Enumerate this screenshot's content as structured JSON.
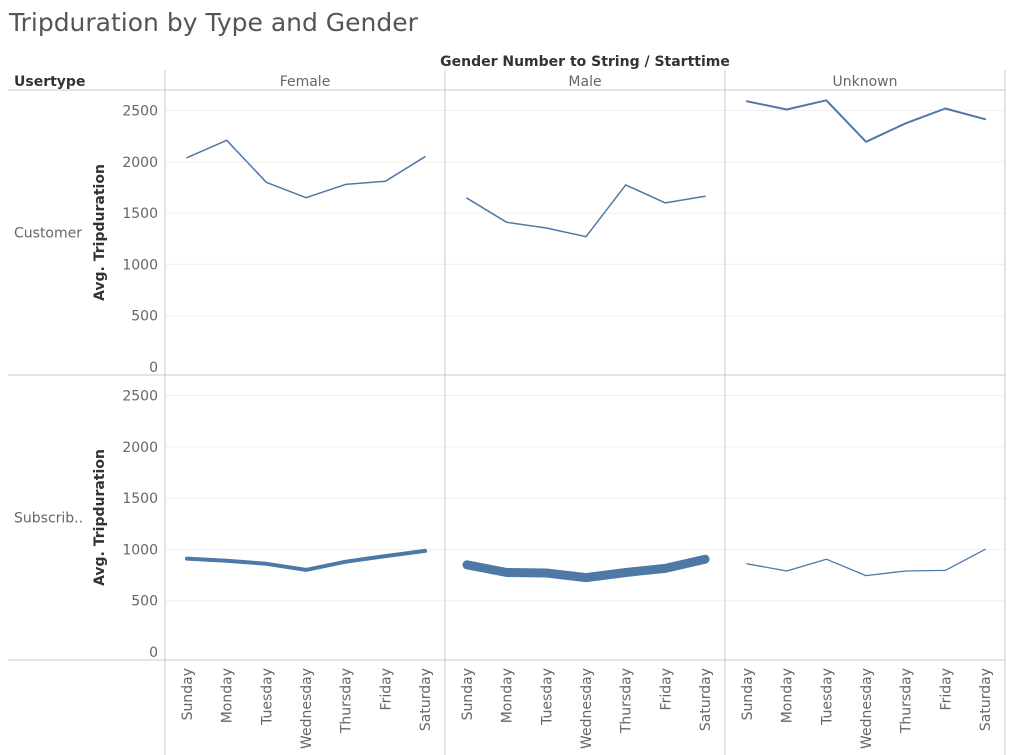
{
  "title": "Tripduration by Type and Gender",
  "column_header": "Gender Number to String / Starttime",
  "row_header": "Usertype",
  "colors": {
    "line": "#4e79a7",
    "divider": "#c8c8c8",
    "grid": "#efefef"
  },
  "chart_data": {
    "type": "line",
    "title": "Tripduration by Type and Gender",
    "ylabel": "Avg. Tripduration",
    "ylim": [
      0,
      2700
    ],
    "yticks": [
      0,
      500,
      1000,
      1500,
      2000,
      2500
    ],
    "categories": [
      "Sunday",
      "Monday",
      "Tuesday",
      "Wednesday",
      "Thursday",
      "Friday",
      "Saturday"
    ],
    "columns": [
      "Female",
      "Male",
      "Unknown"
    ],
    "rows": [
      {
        "label": "Customer",
        "series": [
          {
            "column": "Female",
            "values": [
              2040,
              2210,
              1800,
              1650,
              1780,
              1810,
              2050
            ],
            "weight": 1.5
          },
          {
            "column": "Male",
            "values": [
              1645,
              1410,
              1355,
              1270,
              1775,
              1600,
              1665
            ],
            "weight": 1.5
          },
          {
            "column": "Unknown",
            "values": [
              2590,
              2510,
              2600,
              2195,
              2375,
              2520,
              2415
            ],
            "weight": 2
          }
        ]
      },
      {
        "label": "Subscrib..",
        "series": [
          {
            "column": "Female",
            "values": [
              910,
              890,
              860,
              800,
              880,
              935,
              985
            ],
            "weight": 4
          },
          {
            "column": "Male",
            "values": [
              850,
              775,
              770,
              725,
              775,
              815,
              905
            ],
            "weight": 9
          },
          {
            "column": "Unknown",
            "values": [
              860,
              790,
              905,
              745,
              790,
              795,
              1000
            ],
            "weight": 1.3
          }
        ]
      }
    ]
  }
}
